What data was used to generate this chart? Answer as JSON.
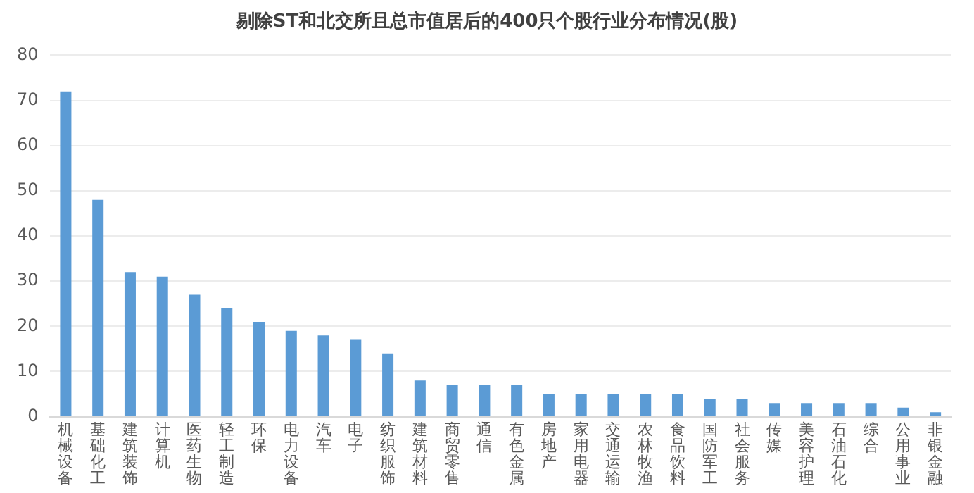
{
  "chart_data": {
    "type": "bar",
    "title": "剔除ST和北交所且总市值居后的400只个股行业分布情况(股)",
    "categories": [
      "机械设备",
      "基础化工",
      "建筑装饰",
      "计算机",
      "医药生物",
      "轻工制造",
      "环保",
      "电力设备",
      "汽车",
      "电子",
      "纺织服饰",
      "建筑材料",
      "商贸零售",
      "通信",
      "有色金属",
      "房地产",
      "家用电器",
      "交通运输",
      "农林牧渔",
      "食品饮料",
      "国防军工",
      "社会服务",
      "传媒",
      "美容护理",
      "石油石化",
      "综合",
      "公用事业",
      "非银金融"
    ],
    "values": [
      72,
      48,
      32,
      31,
      27,
      24,
      21,
      19,
      18,
      17,
      14,
      8,
      7,
      7,
      7,
      5,
      5,
      5,
      5,
      5,
      4,
      4,
      3,
      3,
      3,
      3,
      2,
      1
    ],
    "color": "#5b9bd5",
    "ylim": [
      0,
      80
    ],
    "yticks": [
      0,
      10,
      20,
      30,
      40,
      50,
      60,
      70,
      80
    ],
    "grid": "y",
    "legend": false
  }
}
